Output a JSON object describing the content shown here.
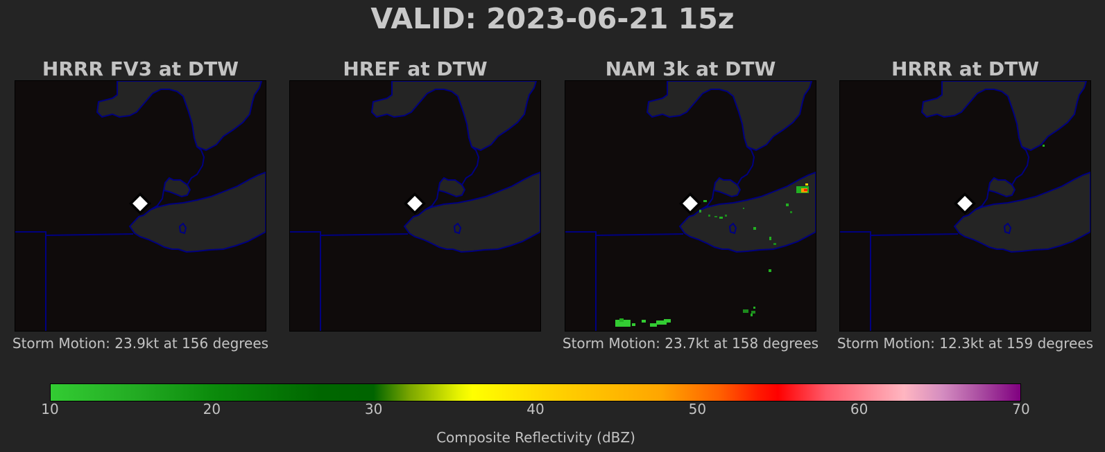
{
  "title": "VALID: 2023-06-21 15z",
  "panels": [
    {
      "title": "HRRR FV3 at DTW",
      "caption": "Storm Motion: 23.9kt at 156 degrees",
      "echoes": "none"
    },
    {
      "title": "HREF at DTW",
      "caption": "",
      "echoes": "none"
    },
    {
      "title": "NAM 3k at DTW",
      "caption": "Storm Motion: 23.7kt at 158 degrees",
      "echoes": "scattered"
    },
    {
      "title": "HRRR at DTW",
      "caption": "Storm Motion: 12.3kt at 159 degrees",
      "echoes": "isolated"
    }
  ],
  "colorbar": {
    "label": "Composite Reflectivity (dBZ)",
    "ticks": [
      "10",
      "20",
      "30",
      "40",
      "50",
      "60",
      "70"
    ],
    "min": 10,
    "max": 70
  },
  "colors": {
    "background": "#242424",
    "land": "#0f0b0b",
    "water": "#242424",
    "borders": "#000080",
    "station_marker": "#ffffff"
  },
  "icons": {
    "station": "white-diamond-icon"
  }
}
